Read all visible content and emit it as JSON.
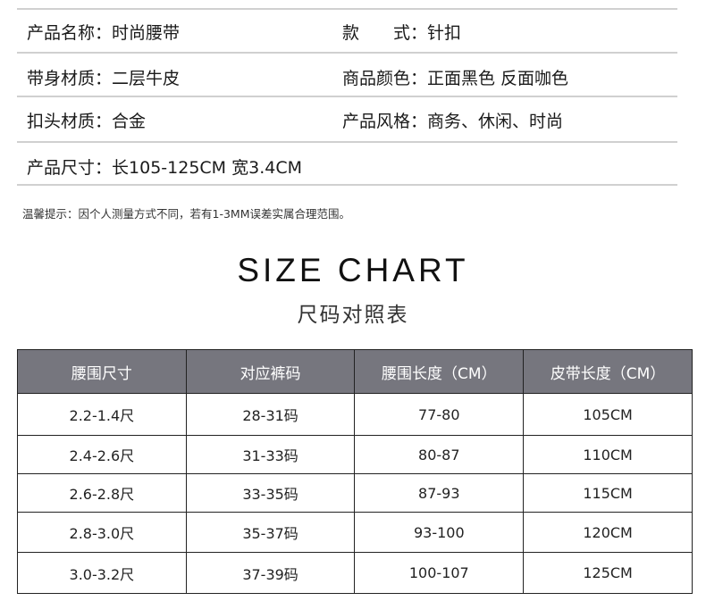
{
  "specs": [
    {
      "label": "产品名称：",
      "value": "时尚腰带"
    },
    {
      "label": "款　　式：",
      "value": "针扣"
    },
    {
      "label": "带身材质：",
      "value": "二层牛皮"
    },
    {
      "label": "商品颜色：",
      "value": "正面黑色 反面咖色"
    },
    {
      "label": "扣头材质：",
      "value": "合金"
    },
    {
      "label": "产品风格：",
      "value": "商务、休闲、时尚"
    },
    {
      "label": "产品尺寸：",
      "value": "长105-125CM 宽3.4CM"
    }
  ],
  "note": "温馨提示：因个人测量方式不同，若有1-3MM误差实属合理范围。",
  "size_chart": {
    "title": "SIZE CHART",
    "subtitle": "尺码对照表",
    "header_color": "#76767e",
    "headers": [
      "腰围尺寸",
      "对应裤码",
      "腰围长度（CM）",
      "皮带长度（CM）"
    ],
    "rows": [
      [
        "2.2-1.4尺",
        "28-31码",
        "77-80",
        "105CM"
      ],
      [
        "2.4-2.6尺",
        "31-33码",
        "80-87",
        "110CM"
      ],
      [
        "2.6-2.8尺",
        "33-35码",
        "87-93",
        "115CM"
      ],
      [
        "2.8-3.0尺",
        "35-37码",
        "93-100",
        "120CM"
      ],
      [
        "3.0-3.2尺",
        "37-39码",
        "100-107",
        "125CM"
      ]
    ]
  }
}
